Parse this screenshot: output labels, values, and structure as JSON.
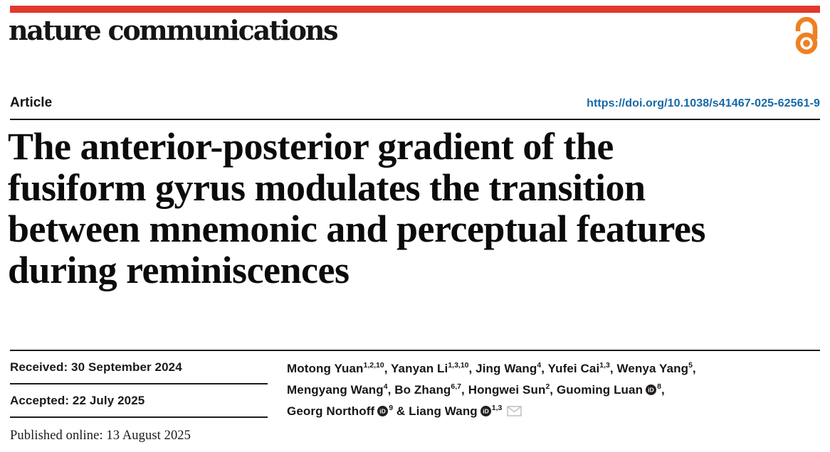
{
  "journal": {
    "name": "nature communications",
    "brand_red": "#e0392e",
    "open_access_color": "#ee8023",
    "open_access_icon": "open-access-padlock"
  },
  "article": {
    "type_label": "Article",
    "doi": "https://doi.org/10.1038/s41467-025-62561-9",
    "doi_color": "#1569a7",
    "title_lines": [
      "The anterior-posterior gradient of the",
      "fusiform gyrus modulates the transition",
      "between mnemonic and perceptual features",
      "during reminiscences"
    ]
  },
  "dates": {
    "received": "Received: 30 September 2024",
    "accepted": "Accepted: 22 July 2025",
    "published": "Published online: 13 August 2025"
  },
  "authors": {
    "orcid_color": "#231f20",
    "envelope_color": "#c2c2c2",
    "items": [
      {
        "name": "Motong Yuan",
        "sup": "1,2,10",
        "sep": ", "
      },
      {
        "name": "Yanyan Li",
        "sup": "1,3,10",
        "sep": ", "
      },
      {
        "name": "Jing Wang",
        "sup": "4",
        "sep": ", "
      },
      {
        "name": "Yufei Cai",
        "sup": "1,3",
        "sep": ", "
      },
      {
        "name": "Wenya Yang",
        "sup": "5",
        "sep": ",",
        "br": true
      },
      {
        "name": "Mengyang Wang",
        "sup": "4",
        "sep": ", "
      },
      {
        "name": "Bo Zhang",
        "sup": "6,7",
        "sep": ", "
      },
      {
        "name": "Hongwei Sun",
        "sup": "2",
        "sep": ", "
      },
      {
        "name": "Guoming Luan",
        "orcid": true,
        "sup": "8",
        "sep": ",",
        "br": true
      },
      {
        "name": "Georg Northoff",
        "orcid": true,
        "sup": "9",
        "sep": " & "
      },
      {
        "name": "Liang Wang",
        "orcid": true,
        "sup": "1,3",
        "sep": "",
        "email": true
      }
    ]
  }
}
